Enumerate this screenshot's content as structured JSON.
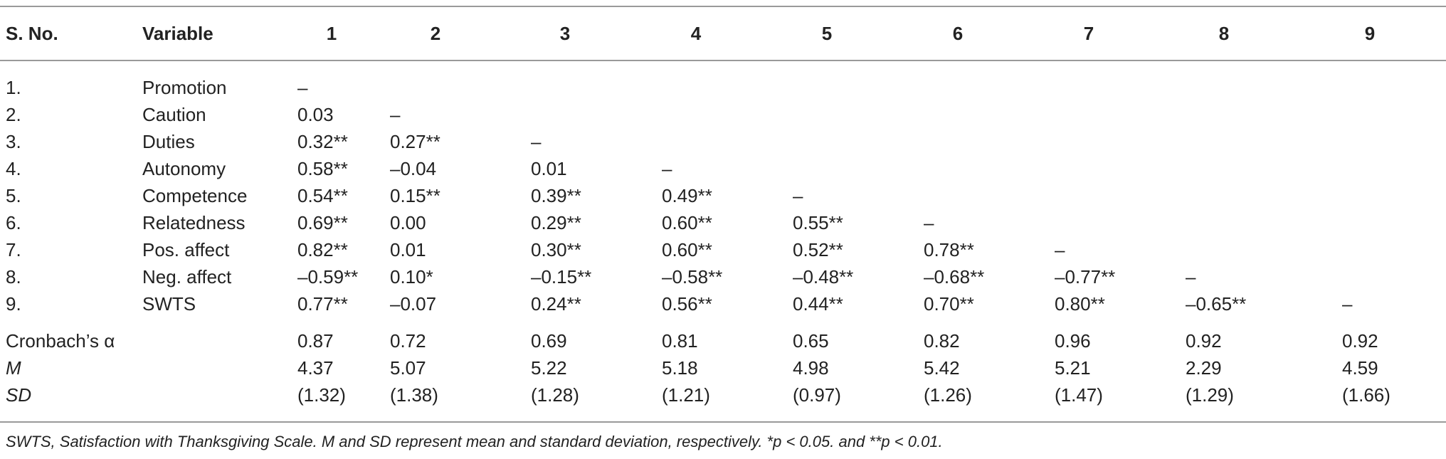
{
  "table": {
    "headers": [
      "S. No.",
      "Variable",
      "1",
      "2",
      "3",
      "4",
      "5",
      "6",
      "7",
      "8",
      "9"
    ],
    "rows": [
      {
        "sno": "1.",
        "variable": "Promotion",
        "cells": [
          "–",
          "",
          "",
          "",
          "",
          "",
          "",
          "",
          ""
        ]
      },
      {
        "sno": "2.",
        "variable": "Caution",
        "cells": [
          "0.03",
          "–",
          "",
          "",
          "",
          "",
          "",
          "",
          ""
        ]
      },
      {
        "sno": "3.",
        "variable": "Duties",
        "cells": [
          "0.32**",
          "0.27**",
          "–",
          "",
          "",
          "",
          "",
          "",
          ""
        ]
      },
      {
        "sno": "4.",
        "variable": "Autonomy",
        "cells": [
          "0.58**",
          "–0.04",
          "0.01",
          "–",
          "",
          "",
          "",
          "",
          ""
        ]
      },
      {
        "sno": "5.",
        "variable": "Competence",
        "cells": [
          "0.54**",
          "0.15**",
          "0.39**",
          "0.49**",
          "–",
          "",
          "",
          "",
          ""
        ]
      },
      {
        "sno": "6.",
        "variable": "Relatedness",
        "cells": [
          "0.69**",
          "0.00",
          "0.29**",
          "0.60**",
          "0.55**",
          "–",
          "",
          "",
          ""
        ]
      },
      {
        "sno": "7.",
        "variable": "Pos. affect",
        "cells": [
          "0.82**",
          "0.01",
          "0.30**",
          "0.60**",
          "0.52**",
          "0.78**",
          "–",
          "",
          ""
        ]
      },
      {
        "sno": "8.",
        "variable": "Neg. affect",
        "cells": [
          "–0.59**",
          "0.10*",
          "–0.15**",
          "–0.58**",
          "–0.48**",
          "–0.68**",
          "–0.77**",
          "–",
          ""
        ]
      },
      {
        "sno": "9.",
        "variable": "SWTS",
        "cells": [
          "0.77**",
          "–0.07",
          "0.24**",
          "0.56**",
          "0.44**",
          "0.70**",
          "0.80**",
          "–0.65**",
          "–"
        ]
      }
    ],
    "stats": [
      {
        "label": "Cronbach’s α",
        "italic": false,
        "cells": [
          "0.87",
          "0.72",
          "0.69",
          "0.81",
          "0.65",
          "0.82",
          "0.96",
          "0.92",
          "0.92"
        ]
      },
      {
        "label": "M",
        "italic": true,
        "cells": [
          "4.37",
          "5.07",
          "5.22",
          "5.18",
          "4.98",
          "5.42",
          "5.21",
          "2.29",
          "4.59"
        ]
      },
      {
        "label": "SD",
        "italic": true,
        "cells": [
          "(1.32)",
          "(1.38)",
          "(1.28)",
          "(1.21)",
          "(0.97)",
          "(1.26)",
          "(1.47)",
          "(1.29)",
          "(1.66)"
        ]
      }
    ]
  },
  "footnote": "SWTS, Satisfaction with Thanksgiving Scale. M and SD represent mean and standard deviation, respectively. *p < 0.05. and  **p < 0.01."
}
